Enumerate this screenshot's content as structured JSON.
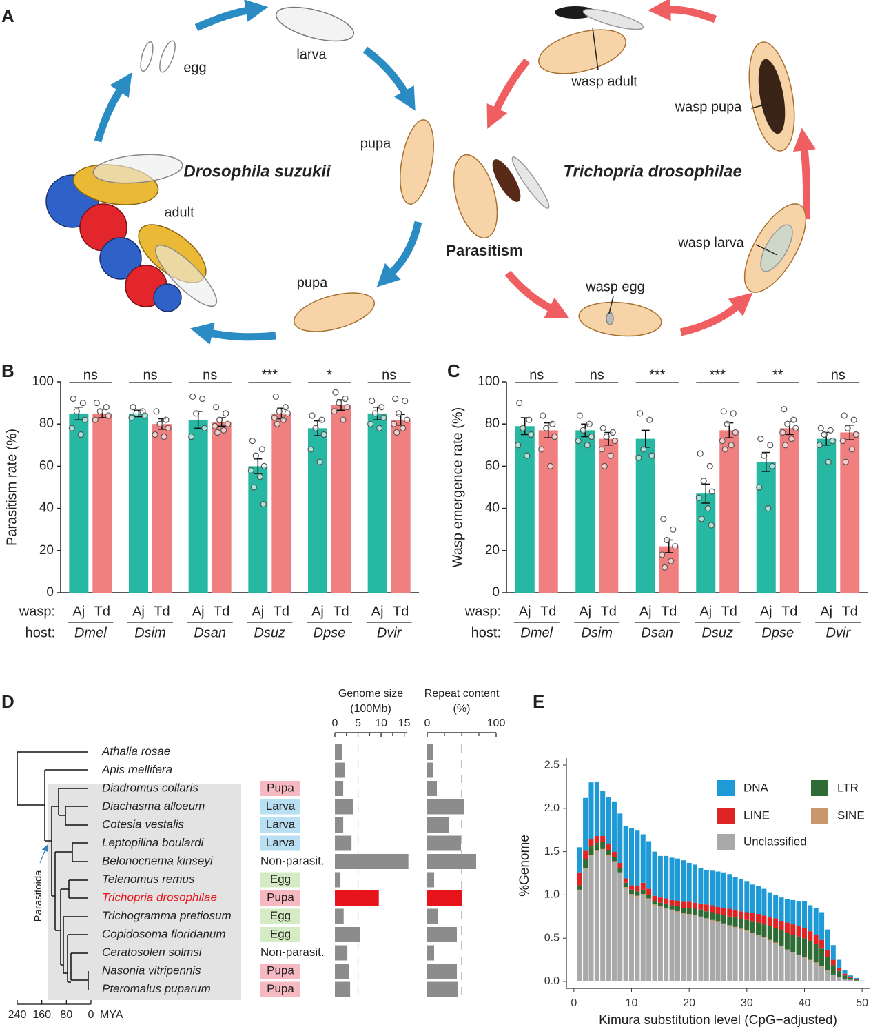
{
  "panel_a": {
    "panel": "A",
    "host_cycle": {
      "species": "Drosophila suzukii",
      "stages": [
        "egg",
        "larva",
        "pupa",
        "pupa",
        "adult"
      ]
    },
    "wasp_cycle": {
      "species": "Trichopria drosophilae",
      "stages": [
        "wasp adult",
        "wasp pupa",
        "wasp larva",
        "wasp egg"
      ],
      "event": "Parasitism"
    }
  },
  "chart_data": [
    {
      "type": "grouped_bar",
      "panel": "B",
      "ylabel": "Parasitism rate (%)",
      "wasp_label": "wasp:",
      "host_label": "host:",
      "categories": [
        "Dmel",
        "Dsim",
        "Dsan",
        "Dsuz",
        "Dpse",
        "Dvir"
      ],
      "significance": [
        "ns",
        "ns",
        "ns",
        "***",
        "*",
        "ns"
      ],
      "ylim": [
        0,
        100
      ],
      "yticks": [
        0,
        20,
        40,
        60,
        80,
        100
      ],
      "series": [
        {
          "name": "Aj",
          "color": "#26b8a2",
          "values": [
            85,
            85,
            82,
            60,
            78,
            85
          ],
          "errors": [
            3,
            1.5,
            4,
            3.5,
            3.5,
            3
          ],
          "points": [
            [
              92,
              90,
              86,
              82,
              78,
              75
            ],
            [
              88,
              86,
              85,
              84,
              83
            ],
            [
              93,
              92,
              85,
              78,
              74
            ],
            [
              72,
              68,
              65,
              60,
              58,
              55,
              50,
              42
            ],
            [
              84,
              82,
              78,
              75,
              68,
              62
            ],
            [
              91,
              88,
              85,
              83,
              80,
              78
            ]
          ]
        },
        {
          "name": "Td",
          "color": "#f08080",
          "values": [
            85,
            80,
            81,
            85,
            89,
            82
          ],
          "errors": [
            2,
            2.5,
            2,
            2.5,
            2.5,
            2.5
          ],
          "points": [
            [
              90,
              88,
              86,
              84,
              82
            ],
            [
              86,
              82,
              80,
              78,
              75,
              74
            ],
            [
              88,
              85,
              82,
              80,
              79,
              77,
              76
            ],
            [
              93,
              88,
              86,
              85,
              83,
              82,
              80
            ],
            [
              95,
              92,
              90,
              88,
              86,
              82
            ],
            [
              92,
              91,
              85,
              82,
              80,
              78,
              76
            ]
          ]
        }
      ]
    },
    {
      "type": "grouped_bar",
      "panel": "C",
      "ylabel": "Wasp emergence rate (%)",
      "wasp_label": "wasp:",
      "host_label": "host:",
      "categories": [
        "Dmel",
        "Dsim",
        "Dsan",
        "Dsuz",
        "Dpse",
        "Dvir"
      ],
      "significance": [
        "ns",
        "ns",
        "***",
        "***",
        "**",
        "ns"
      ],
      "ylim": [
        0,
        100
      ],
      "yticks": [
        0,
        20,
        40,
        60,
        80,
        100
      ],
      "series": [
        {
          "name": "Aj",
          "color": "#26b8a2",
          "values": [
            79,
            77,
            73,
            47,
            62,
            73
          ],
          "errors": [
            4,
            3,
            4,
            4.5,
            4.5,
            3
          ],
          "points": [
            [
              90,
              82,
              78,
              75,
              70,
              65
            ],
            [
              84,
              80,
              77,
              74,
              72,
              70
            ],
            [
              85,
              82,
              68,
              65,
              64
            ],
            [
              66,
              60,
              53,
              48,
              45,
              40,
              35,
              32
            ],
            [
              73,
              70,
              65,
              60,
              50,
              40
            ],
            [
              78,
              77,
              75,
              72,
              70,
              62
            ]
          ]
        },
        {
          "name": "Td",
          "color": "#f08080",
          "values": [
            77,
            73,
            22,
            77,
            78,
            76
          ],
          "errors": [
            3.5,
            3,
            3,
            3.5,
            3,
            3.5
          ],
          "points": [
            [
              84,
              80,
              78,
              74,
              68,
              60
            ],
            [
              78,
              76,
              74,
              72,
              68,
              65,
              60
            ],
            [
              35,
              30,
              25,
              22,
              18,
              15,
              12
            ],
            [
              86,
              85,
              80,
              76,
              72,
              70,
              68
            ],
            [
              87,
              82,
              80,
              78,
              76,
              73,
              70
            ],
            [
              84,
              82,
              78,
              75,
              72,
              68,
              62
            ]
          ]
        }
      ]
    },
    {
      "type": "phylogeny",
      "panel": "D",
      "species": [
        "Athalia rosae",
        "Apis mellifera",
        "Diadromus collaris",
        "Diachasma alloeum",
        "Cotesia vestalis",
        "Leptopilina boulardi",
        "Belonocnema kinseyi",
        "Telenomus remus",
        "Trichopria drosophilae",
        "Trichogramma pretiosum",
        "Copidosoma floridanum",
        "Ceratosolen solmsi",
        "Nasonia vitripennis",
        "Pteromalus puparum"
      ],
      "species_colors": [
        "#222222",
        "#222222",
        "#222222",
        "#222222",
        "#222222",
        "#222222",
        "#222222",
        "#222222",
        "#e8141b",
        "#222222",
        "#222222",
        "#222222",
        "#222222",
        "#222222"
      ],
      "stages": [
        null,
        null,
        "Pupa",
        "Larva",
        "Larva",
        "Larva",
        "Non-parasit.",
        "Egg",
        "Pupa",
        "Egg",
        "Egg",
        "Non-parasit.",
        "Pupa",
        "Pupa"
      ],
      "stage_colors": {
        "Pupa": "#f6b9c2",
        "Larva": "#b9dff2",
        "Egg": "#d5ebc4"
      },
      "clade_label": "Parasitoida",
      "xlim": [
        240,
        0
      ],
      "xticks": [
        240,
        160,
        80,
        0
      ],
      "xlabel": "MYA",
      "genome_size": {
        "title": "Genome size",
        "unit": "(100Mb)",
        "xlim": [
          0,
          15.5
        ],
        "xticks": [
          0,
          5,
          10,
          15
        ],
        "minor_xticks": [
          2.5,
          7.5,
          12.5
        ],
        "reference": 5,
        "values": [
          1.5,
          2.2,
          1.8,
          3.9,
          1.8,
          3.6,
          15.9,
          1.2,
          9.5,
          1.9,
          5.5,
          2.7,
          3.0,
          3.3
        ],
        "colors": [
          "#8c8c8c",
          "#8c8c8c",
          "#8c8c8c",
          "#8c8c8c",
          "#8c8c8c",
          "#8c8c8c",
          "#8c8c8c",
          "#8c8c8c",
          "#e8141b",
          "#8c8c8c",
          "#8c8c8c",
          "#8c8c8c",
          "#8c8c8c",
          "#8c8c8c"
        ]
      },
      "repeat_content": {
        "title": "Repeat content",
        "unit": "(%)",
        "xlim": [
          0,
          100
        ],
        "xticks": [
          0,
          100
        ],
        "minor_xticks": [
          25,
          50,
          75
        ],
        "reference": 50,
        "values": [
          9,
          9,
          14,
          54,
          31,
          49,
          71,
          10,
          51,
          16,
          43,
          10,
          43,
          44
        ],
        "colors": [
          "#8c8c8c",
          "#8c8c8c",
          "#8c8c8c",
          "#8c8c8c",
          "#8c8c8c",
          "#8c8c8c",
          "#8c8c8c",
          "#8c8c8c",
          "#e8141b",
          "#8c8c8c",
          "#8c8c8c",
          "#8c8c8c",
          "#8c8c8c",
          "#8c8c8c"
        ]
      }
    },
    {
      "type": "stacked_bar",
      "panel": "E",
      "xlabel": "Kimura substitution level (CpG−adjusted)",
      "ylabel": "%Genome",
      "xlim": [
        -1.3,
        51.3
      ],
      "xticks": [
        0,
        10,
        20,
        30,
        40,
        50
      ],
      "ylim": [
        -0.08,
        2.58
      ],
      "yticks": [
        {
          "value": 0,
          "label": "0.0"
        },
        {
          "value": 0.5,
          "label": "0.5"
        },
        {
          "value": 1,
          "label": "1.0"
        },
        {
          "value": 1.5,
          "label": "1.5"
        },
        {
          "value": 2,
          "label": "2.0"
        },
        {
          "value": 2.5,
          "label": "2.5"
        }
      ],
      "x": [
        1,
        2,
        3,
        4,
        5,
        6,
        7,
        8,
        9,
        10,
        11,
        12,
        13,
        14,
        15,
        16,
        17,
        18,
        19,
        20,
        21,
        22,
        23,
        24,
        25,
        26,
        27,
        28,
        29,
        30,
        31,
        32,
        33,
        34,
        35,
        36,
        37,
        38,
        39,
        40,
        41,
        42,
        43,
        44,
        45,
        46,
        47,
        48,
        49,
        50
      ],
      "series": [
        {
          "name": "Unclassified",
          "color": "#a9a9a9",
          "values": [
            1.05,
            1.3,
            1.45,
            1.5,
            1.52,
            1.45,
            1.38,
            1.25,
            1.08,
            1.0,
            0.98,
            1.0,
            0.95,
            0.88,
            0.86,
            0.84,
            0.82,
            0.8,
            0.78,
            0.77,
            0.76,
            0.74,
            0.72,
            0.7,
            0.68,
            0.66,
            0.64,
            0.62,
            0.6,
            0.58,
            0.55,
            0.53,
            0.5,
            0.47,
            0.44,
            0.4,
            0.36,
            0.33,
            0.3,
            0.27,
            0.24,
            0.21,
            0.17,
            0.12,
            0.08,
            0.05,
            0.03,
            0.02,
            0.01,
            0
          ]
        },
        {
          "name": "SINE",
          "color": "#c9956a",
          "values": [
            0.01,
            0.01,
            0.01,
            0.01,
            0.01,
            0.01,
            0.01,
            0.01,
            0.01,
            0.01,
            0.01,
            0.01,
            0.01,
            0.01,
            0.01,
            0.01,
            0.01,
            0.01,
            0.01,
            0.01,
            0.01,
            0.01,
            0.01,
            0.01,
            0.01,
            0.01,
            0.01,
            0.01,
            0.01,
            0.01,
            0.01,
            0.01,
            0.01,
            0.01,
            0.01,
            0.01,
            0.01,
            0.01,
            0.01,
            0.01,
            0.01,
            0.01,
            0.01,
            0.01,
            0,
            0,
            0,
            0,
            0,
            0
          ]
        },
        {
          "name": "LTR",
          "color": "#2e6b35",
          "values": [
            0.05,
            0.1,
            0.1,
            0.09,
            0.08,
            0.06,
            0.05,
            0.05,
            0.05,
            0.05,
            0.05,
            0.05,
            0.04,
            0.04,
            0.04,
            0.05,
            0.05,
            0.06,
            0.06,
            0.07,
            0.07,
            0.08,
            0.08,
            0.09,
            0.09,
            0.1,
            0.1,
            0.11,
            0.11,
            0.12,
            0.13,
            0.14,
            0.15,
            0.16,
            0.17,
            0.18,
            0.19,
            0.2,
            0.21,
            0.22,
            0.22,
            0.21,
            0.2,
            0.15,
            0.11,
            0.07,
            0.04,
            0.02,
            0.01,
            0
          ]
        },
        {
          "name": "LINE",
          "color": "#e02424",
          "values": [
            0.15,
            0.1,
            0.08,
            0.08,
            0.07,
            0.07,
            0.06,
            0.06,
            0.05,
            0.05,
            0.06,
            0.08,
            0.07,
            0.06,
            0.06,
            0.06,
            0.06,
            0.06,
            0.07,
            0.07,
            0.07,
            0.07,
            0.08,
            0.08,
            0.08,
            0.08,
            0.09,
            0.09,
            0.09,
            0.09,
            0.1,
            0.1,
            0.1,
            0.1,
            0.11,
            0.11,
            0.12,
            0.12,
            0.12,
            0.12,
            0.11,
            0.11,
            0.1,
            0.08,
            0.06,
            0.04,
            0.02,
            0.01,
            0.01,
            0
          ]
        },
        {
          "name": "DNA",
          "color": "#1e9ad6",
          "values": [
            0.29,
            0.61,
            0.66,
            0.63,
            0.52,
            0.54,
            0.58,
            0.57,
            0.61,
            0.66,
            0.65,
            0.56,
            0.55,
            0.51,
            0.48,
            0.49,
            0.49,
            0.49,
            0.48,
            0.45,
            0.44,
            0.41,
            0.4,
            0.4,
            0.41,
            0.41,
            0.4,
            0.38,
            0.37,
            0.36,
            0.33,
            0.32,
            0.31,
            0.29,
            0.27,
            0.27,
            0.27,
            0.28,
            0.29,
            0.31,
            0.3,
            0.31,
            0.32,
            0.24,
            0.17,
            0.09,
            0.04,
            0.02,
            0.01,
            0.01
          ]
        }
      ]
    }
  ]
}
